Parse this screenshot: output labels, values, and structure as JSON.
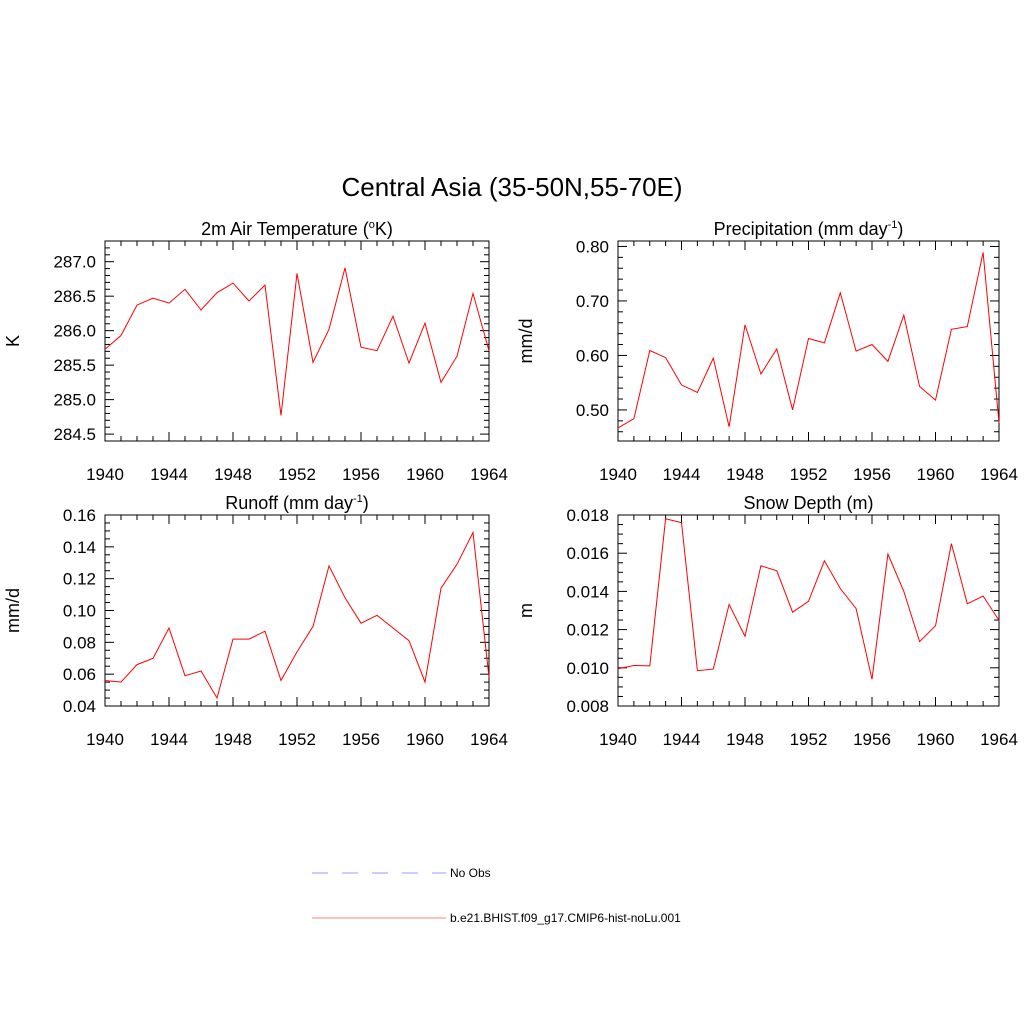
{
  "figure": {
    "title": "Central Asia (35-50N,55-70E)"
  },
  "chart_data": [
    {
      "type": "line",
      "title": "2m Air Temperature (",
      "title_sup": "o",
      "title_after": "K)",
      "xlabel": "",
      "ylabel": "K",
      "xlim": [
        1940,
        1964
      ],
      "ylim": [
        284.4,
        287.3
      ],
      "xticks": [
        1940,
        1944,
        1948,
        1952,
        1956,
        1960,
        1964
      ],
      "xtick_labels": [
        "1940",
        "1944",
        "1948",
        "1952",
        "1956",
        "1960",
        "1964"
      ],
      "yticks": [
        284.5,
        285.0,
        285.5,
        286.0,
        286.5,
        287.0
      ],
      "ytick_labels": [
        "284.5",
        "285.0",
        "285.5",
        "286.0",
        "286.5",
        "287.0"
      ],
      "yminor_step": 0.1,
      "series": [
        {
          "name": "b.e21.BHIST.f09_g17.CMIP6-hist-noLu.001",
          "color": "#ff0000",
          "x": [
            1940,
            1941,
            1942,
            1943,
            1944,
            1945,
            1946,
            1947,
            1948,
            1949,
            1950,
            1951,
            1952,
            1953,
            1954,
            1955,
            1956,
            1957,
            1958,
            1959,
            1960,
            1961,
            1962,
            1963,
            1964
          ],
          "y": [
            285.73,
            285.93,
            286.37,
            286.47,
            286.4,
            286.6,
            286.3,
            286.55,
            286.69,
            286.43,
            286.66,
            284.77,
            286.83,
            285.54,
            286.02,
            286.91,
            285.76,
            285.71,
            286.21,
            285.53,
            286.11,
            285.25,
            285.63,
            286.54,
            285.71
          ]
        }
      ]
    },
    {
      "type": "line",
      "title": "Precipitation (mm day",
      "title_sup": "-1",
      "title_after": ")",
      "xlabel": "",
      "ylabel": "mm/d",
      "xlim": [
        1940,
        1964
      ],
      "ylim": [
        0.443,
        0.81
      ],
      "xticks": [
        1940,
        1944,
        1948,
        1952,
        1956,
        1960,
        1964
      ],
      "xtick_labels": [
        "1940",
        "1944",
        "1948",
        "1952",
        "1956",
        "1960",
        "1964"
      ],
      "yticks": [
        0.5,
        0.6,
        0.7,
        0.8
      ],
      "ytick_labels": [
        "0.50",
        "0.60",
        "0.70",
        "0.80"
      ],
      "yminor_step": 0.02,
      "series": [
        {
          "name": "b.e21.BHIST.f09_g17.CMIP6-hist-noLu.001",
          "color": "#ff0000",
          "x": [
            1940,
            1941,
            1942,
            1943,
            1944,
            1945,
            1946,
            1947,
            1948,
            1949,
            1950,
            1951,
            1952,
            1953,
            1954,
            1955,
            1956,
            1957,
            1958,
            1959,
            1960,
            1961,
            1962,
            1963,
            1964
          ],
          "y": [
            0.467,
            0.484,
            0.609,
            0.596,
            0.546,
            0.532,
            0.595,
            0.469,
            0.656,
            0.566,
            0.612,
            0.5,
            0.631,
            0.623,
            0.715,
            0.608,
            0.62,
            0.589,
            0.674,
            0.543,
            0.518,
            0.648,
            0.653,
            0.789,
            0.476
          ]
        }
      ]
    },
    {
      "type": "line",
      "title": "Runoff (mm day",
      "title_sup": "-1",
      "title_after": ")",
      "xlabel": "",
      "ylabel": "mm/d",
      "xlim": [
        1940,
        1964
      ],
      "ylim": [
        0.04,
        0.16
      ],
      "xticks": [
        1940,
        1944,
        1948,
        1952,
        1956,
        1960,
        1964
      ],
      "xtick_labels": [
        "1940",
        "1944",
        "1948",
        "1952",
        "1956",
        "1960",
        "1964"
      ],
      "yticks": [
        0.04,
        0.06,
        0.08,
        0.1,
        0.12,
        0.14,
        0.16
      ],
      "ytick_labels": [
        "0.04",
        "0.06",
        "0.08",
        "0.10",
        "0.12",
        "0.14",
        "0.16"
      ],
      "yminor_step": 0.005,
      "series": [
        {
          "name": "b.e21.BHIST.f09_g17.CMIP6-hist-noLu.001",
          "color": "#ff0000",
          "x": [
            1940,
            1941,
            1942,
            1943,
            1944,
            1945,
            1946,
            1947,
            1948,
            1949,
            1950,
            1951,
            1952,
            1953,
            1954,
            1955,
            1956,
            1957,
            1958,
            1959,
            1960,
            1961,
            1962,
            1963,
            1964
          ],
          "y": [
            0.056,
            0.055,
            0.066,
            0.07,
            0.089,
            0.059,
            0.062,
            0.045,
            0.082,
            0.082,
            0.087,
            0.056,
            0.074,
            0.09,
            0.128,
            0.108,
            0.092,
            0.097,
            0.089,
            0.081,
            0.055,
            0.114,
            0.129,
            0.149,
            0.058
          ]
        }
      ]
    },
    {
      "type": "line",
      "title": "Snow Depth (m)",
      "title_sup": "",
      "title_after": "",
      "xlabel": "",
      "ylabel": "m",
      "xlim": [
        1940,
        1964
      ],
      "ylim": [
        0.008,
        0.018
      ],
      "xticks": [
        1940,
        1944,
        1948,
        1952,
        1956,
        1960,
        1964
      ],
      "xtick_labels": [
        "1940",
        "1944",
        "1948",
        "1952",
        "1956",
        "1960",
        "1964"
      ],
      "yticks": [
        0.008,
        0.01,
        0.012,
        0.014,
        0.016,
        0.018
      ],
      "ytick_labels": [
        "0.008",
        "0.010",
        "0.012",
        "0.014",
        "0.016",
        "0.018"
      ],
      "yminor_step": 0.0005,
      "series": [
        {
          "name": "b.e21.BHIST.f09_g17.CMIP6-hist-noLu.001",
          "color": "#ff0000",
          "x": [
            1940,
            1941,
            1942,
            1943,
            1944,
            1945,
            1946,
            1947,
            1948,
            1949,
            1950,
            1951,
            1952,
            1953,
            1954,
            1955,
            1956,
            1957,
            1958,
            1959,
            1960,
            1961,
            1962,
            1963,
            1964
          ],
          "y": [
            0.00995,
            0.01012,
            0.0101,
            0.0178,
            0.0176,
            0.00985,
            0.00993,
            0.01332,
            0.01165,
            0.01534,
            0.01508,
            0.01291,
            0.01348,
            0.0156,
            0.01415,
            0.0131,
            0.0094,
            0.01596,
            0.014,
            0.01137,
            0.0122,
            0.0165,
            0.01335,
            0.01376,
            0.01248
          ]
        }
      ]
    }
  ],
  "legend": {
    "items": [
      {
        "label": "No Obs",
        "color": "#9999ff",
        "style": "dashed"
      },
      {
        "label": "b.e21.BHIST.f09_g17.CMIP6-hist-noLu.001",
        "color": "#ff8080",
        "style": "solid"
      }
    ]
  }
}
